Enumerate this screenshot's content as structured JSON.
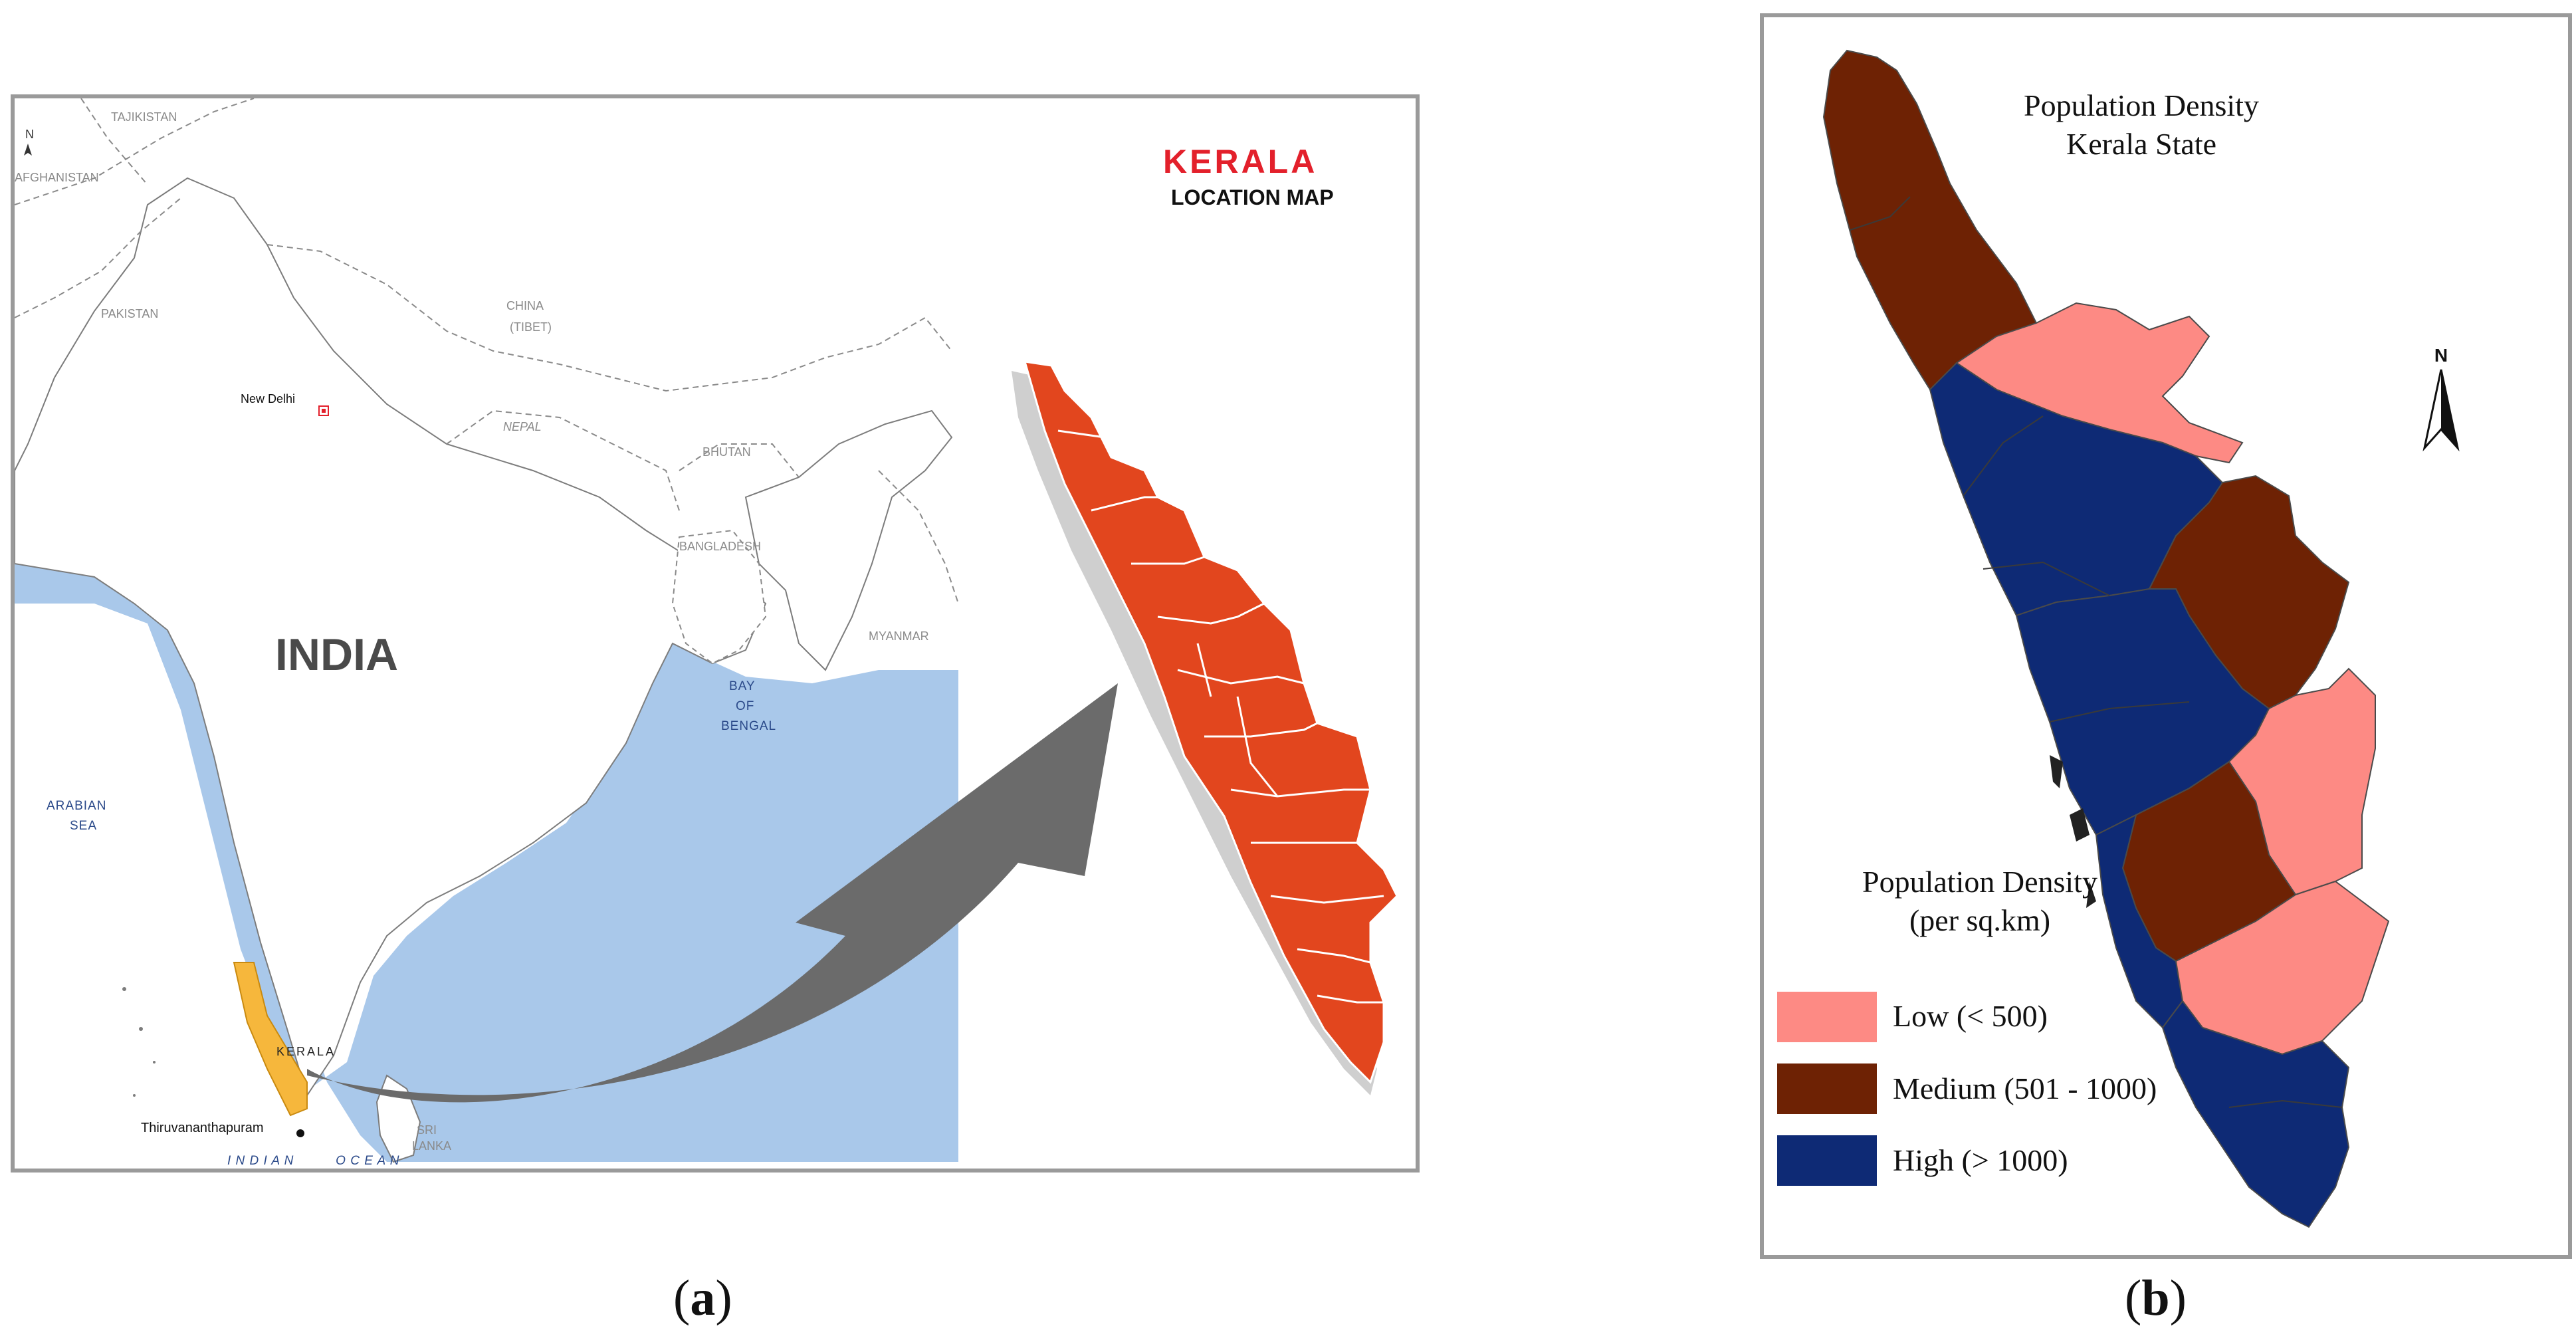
{
  "panel_a": {
    "map_title": "KERALA",
    "map_subtitle": "LOCATION MAP",
    "north_label": "N",
    "country_label": "INDIA",
    "capital_label": "New Delhi",
    "kerala_label": "KERALA",
    "city_label": "Thiruvananthapuram",
    "neighbors": {
      "tajikistan": "TAJIKISTAN",
      "afghanistan": "AFGHANISTAN",
      "pakistan": "PAKISTAN",
      "china": "CHINA",
      "tibet": "(TIBET)",
      "nepal": "NEPAL",
      "bhutan": "BHUTAN",
      "bangladesh": "BANGLADESH",
      "myanmar": "MYANMAR",
      "sri_lanka_1": "SRI",
      "sri_lanka_2": "LANKA"
    },
    "seas": {
      "arabian_1": "ARABIAN",
      "arabian_2": "SEA",
      "bay_1": "BAY",
      "bay_2": "OF",
      "bay_3": "BENGAL",
      "indian_ocean": "I N D I A N          O C E A N"
    },
    "colors": {
      "sea": "#a9c8ea",
      "land": "#ffffff",
      "kerala_highlight": "#f6b73c",
      "kerala_enlarged": "#e2461e",
      "arrow": "#6b6b6b",
      "title_red": "#e3202b"
    }
  },
  "panel_b": {
    "title_line1": "Population Density",
    "title_line2": "Kerala State",
    "north_label": "N",
    "legend_title_line1": "Population Density",
    "legend_title_line2": "(per sq.km)",
    "legend": [
      {
        "label": "Low (< 500)",
        "color": "#fd8a84"
      },
      {
        "label": "Medium (501 - 1000)",
        "color": "#6e2204"
      },
      {
        "label": "High (> 1000)",
        "color": "#0e2a75"
      }
    ]
  },
  "captions": {
    "a_open": "(",
    "a_letter": "a",
    "a_close": ")",
    "b_open": "(",
    "b_letter": "b",
    "b_close": ")"
  }
}
